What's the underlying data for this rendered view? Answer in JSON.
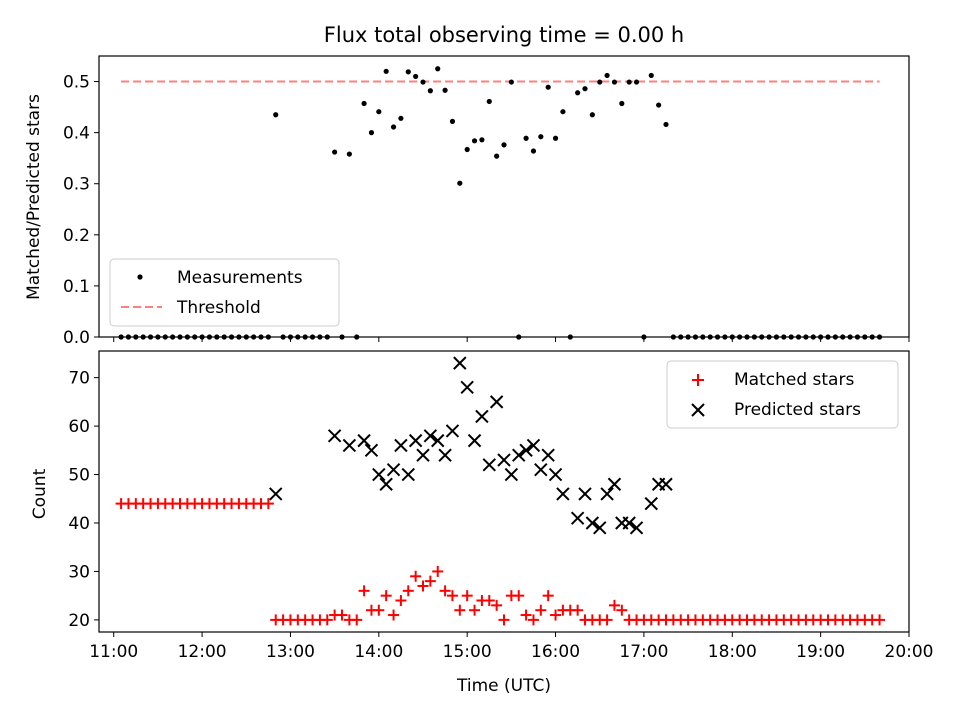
{
  "chart_data": [
    {
      "type": "scatter",
      "title": "Flux total observing time = 0.00 h",
      "xlabel": "",
      "ylabel": "Matched/Predicted stars",
      "xlim": [
        "10:50",
        "20:00"
      ],
      "ylim": [
        0,
        0.55
      ],
      "yticks": [
        "0.0",
        "0.1",
        "0.2",
        "0.3",
        "0.4",
        "0.5"
      ],
      "threshold": {
        "name": "Threshold",
        "value": 0.5,
        "from": "11:05",
        "to": "19:40",
        "color": "#ff7f7f"
      },
      "legend": {
        "position": "lower-left"
      },
      "series": [
        {
          "name": "Measurements",
          "color": "#000000",
          "marker": "dot",
          "x": [
            "11:05",
            "11:10",
            "11:15",
            "11:20",
            "11:25",
            "11:30",
            "11:35",
            "11:40",
            "11:45",
            "11:50",
            "11:55",
            "12:00",
            "12:05",
            "12:10",
            "12:15",
            "12:20",
            "12:25",
            "12:30",
            "12:35",
            "12:40",
            "12:45",
            "12:50",
            "12:55",
            "13:00",
            "13:05",
            "13:10",
            "13:15",
            "13:20",
            "13:25",
            "13:30",
            "13:35",
            "13:40",
            "13:45",
            "13:50",
            "13:55",
            "14:00",
            "14:05",
            "14:10",
            "14:15",
            "14:20",
            "14:25",
            "14:30",
            "14:35",
            "14:40",
            "14:45",
            "14:50",
            "14:55",
            "15:00",
            "15:05",
            "15:10",
            "15:15",
            "15:20",
            "15:25",
            "15:30",
            "15:35",
            "15:40",
            "15:45",
            "15:50",
            "15:55",
            "16:00",
            "16:05",
            "16:10",
            "16:15",
            "16:20",
            "16:25",
            "16:30",
            "16:35",
            "16:40",
            "16:45",
            "16:50",
            "16:55",
            "17:00",
            "17:05",
            "17:10",
            "17:15",
            "17:20",
            "17:25",
            "17:30",
            "17:35",
            "17:40",
            "17:45",
            "17:50",
            "17:55",
            "18:00",
            "18:05",
            "18:10",
            "18:15",
            "18:20",
            "18:25",
            "18:30",
            "18:35",
            "18:40",
            "18:45",
            "18:50",
            "18:55",
            "19:00",
            "19:05",
            "19:10",
            "19:15",
            "19:20",
            "19:25",
            "19:30",
            "19:35",
            "19:40"
          ],
          "y": [
            0,
            0,
            0,
            0,
            0,
            0,
            0,
            0,
            0,
            0,
            0,
            0,
            0,
            0,
            0,
            0,
            0,
            0,
            0,
            0,
            0,
            0.435,
            0,
            0,
            0,
            0,
            0,
            0,
            0,
            0.362,
            0,
            0.358,
            0,
            0.457,
            0.4,
            0.441,
            0.52,
            0.411,
            0.428,
            0.519,
            0.51,
            0.499,
            0.482,
            0.525,
            0.483,
            0.422,
            0.301,
            0.367,
            0.384,
            0.386,
            0.461,
            0.354,
            0.376,
            0.499,
            0,
            0.389,
            0.364,
            0.392,
            0.489,
            0.389,
            0.441,
            0,
            0.478,
            0.486,
            0.435,
            0.499,
            0.512,
            0.499,
            0.457,
            0.499,
            0.499,
            0,
            0.512,
            0.454,
            0.416,
            0,
            0,
            0,
            0,
            0,
            0,
            0,
            0,
            0,
            0,
            0,
            0,
            0,
            0,
            0,
            0,
            0,
            0,
            0,
            0,
            0,
            0,
            0,
            0,
            0,
            0,
            0,
            0,
            0
          ]
        }
      ]
    },
    {
      "type": "scatter",
      "title": "",
      "xlabel": "Time (UTC)",
      "ylabel": "Count",
      "xlim": [
        "10:50",
        "20:00"
      ],
      "ylim": [
        17.5,
        75.5
      ],
      "yticks": [
        "20",
        "30",
        "40",
        "50",
        "60",
        "70"
      ],
      "xticks": [
        "11:00",
        "12:00",
        "13:00",
        "14:00",
        "15:00",
        "16:00",
        "17:00",
        "18:00",
        "19:00",
        "20:00"
      ],
      "legend": {
        "position": "top-right"
      },
      "series": [
        {
          "name": "Matched stars",
          "color": "#ff0000",
          "marker": "plus",
          "x": [
            "11:05",
            "11:10",
            "11:15",
            "11:20",
            "11:25",
            "11:30",
            "11:35",
            "11:40",
            "11:45",
            "11:50",
            "11:55",
            "12:00",
            "12:05",
            "12:10",
            "12:15",
            "12:20",
            "12:25",
            "12:30",
            "12:35",
            "12:40",
            "12:45",
            "12:50",
            "12:55",
            "13:00",
            "13:05",
            "13:10",
            "13:15",
            "13:20",
            "13:25",
            "13:30",
            "13:35",
            "13:40",
            "13:45",
            "13:50",
            "13:55",
            "14:00",
            "14:05",
            "14:10",
            "14:15",
            "14:20",
            "14:25",
            "14:30",
            "14:35",
            "14:40",
            "14:45",
            "14:50",
            "14:55",
            "15:00",
            "15:05",
            "15:10",
            "15:15",
            "15:20",
            "15:25",
            "15:30",
            "15:35",
            "15:40",
            "15:45",
            "15:50",
            "15:55",
            "16:00",
            "16:05",
            "16:10",
            "16:15",
            "16:20",
            "16:25",
            "16:30",
            "16:35",
            "16:40",
            "16:45",
            "16:50",
            "16:55",
            "17:00",
            "17:05",
            "17:10",
            "17:15",
            "17:20",
            "17:25",
            "17:30",
            "17:35",
            "17:40",
            "17:45",
            "17:50",
            "17:55",
            "18:00",
            "18:05",
            "18:10",
            "18:15",
            "18:20",
            "18:25",
            "18:30",
            "18:35",
            "18:40",
            "18:45",
            "18:50",
            "18:55",
            "19:00",
            "19:05",
            "19:10",
            "19:15",
            "19:20",
            "19:25",
            "19:30",
            "19:35",
            "19:40"
          ],
          "y": [
            44,
            44,
            44,
            44,
            44,
            44,
            44,
            44,
            44,
            44,
            44,
            44,
            44,
            44,
            44,
            44,
            44,
            44,
            44,
            44,
            44,
            20,
            20,
            20,
            20,
            20,
            20,
            20,
            20,
            21,
            21,
            20,
            20,
            26,
            22,
            22,
            25,
            21,
            24,
            26,
            29,
            27,
            28,
            30,
            26,
            25,
            22,
            25,
            22,
            24,
            24,
            23,
            20,
            25,
            25,
            21,
            20,
            22,
            25,
            21,
            22,
            22,
            22,
            20,
            20,
            20,
            20,
            23,
            22,
            20,
            20,
            20,
            20,
            20,
            20,
            20,
            20,
            20,
            20,
            20,
            20,
            20,
            20,
            20,
            20,
            20,
            20,
            20,
            20,
            20,
            20,
            20,
            20,
            20,
            20,
            20,
            20,
            20,
            20,
            20,
            20,
            20,
            20,
            20
          ]
        },
        {
          "name": "Predicted stars",
          "color": "#000000",
          "marker": "x",
          "x": [
            "12:50",
            "13:30",
            "13:40",
            "13:50",
            "13:55",
            "14:00",
            "14:05",
            "14:10",
            "14:15",
            "14:20",
            "14:25",
            "14:30",
            "14:35",
            "14:40",
            "14:45",
            "14:50",
            "14:55",
            "15:00",
            "15:05",
            "15:10",
            "15:15",
            "15:20",
            "15:25",
            "15:30",
            "15:35",
            "15:40",
            "15:45",
            "15:50",
            "15:55",
            "16:00",
            "16:05",
            "16:15",
            "16:20",
            "16:25",
            "16:30",
            "16:35",
            "16:40",
            "16:45",
            "16:50",
            "16:55",
            "17:05",
            "17:10",
            "17:15"
          ],
          "y": [
            46,
            58,
            56,
            57,
            55,
            50,
            48,
            51,
            56,
            50,
            57,
            54,
            58,
            57,
            54,
            59,
            73,
            68,
            57,
            62,
            52,
            65,
            53,
            50,
            54,
            55,
            56,
            51,
            54,
            50,
            46,
            41,
            46,
            40,
            39,
            46,
            48,
            40,
            40,
            39,
            44,
            48,
            48
          ]
        }
      ]
    }
  ]
}
